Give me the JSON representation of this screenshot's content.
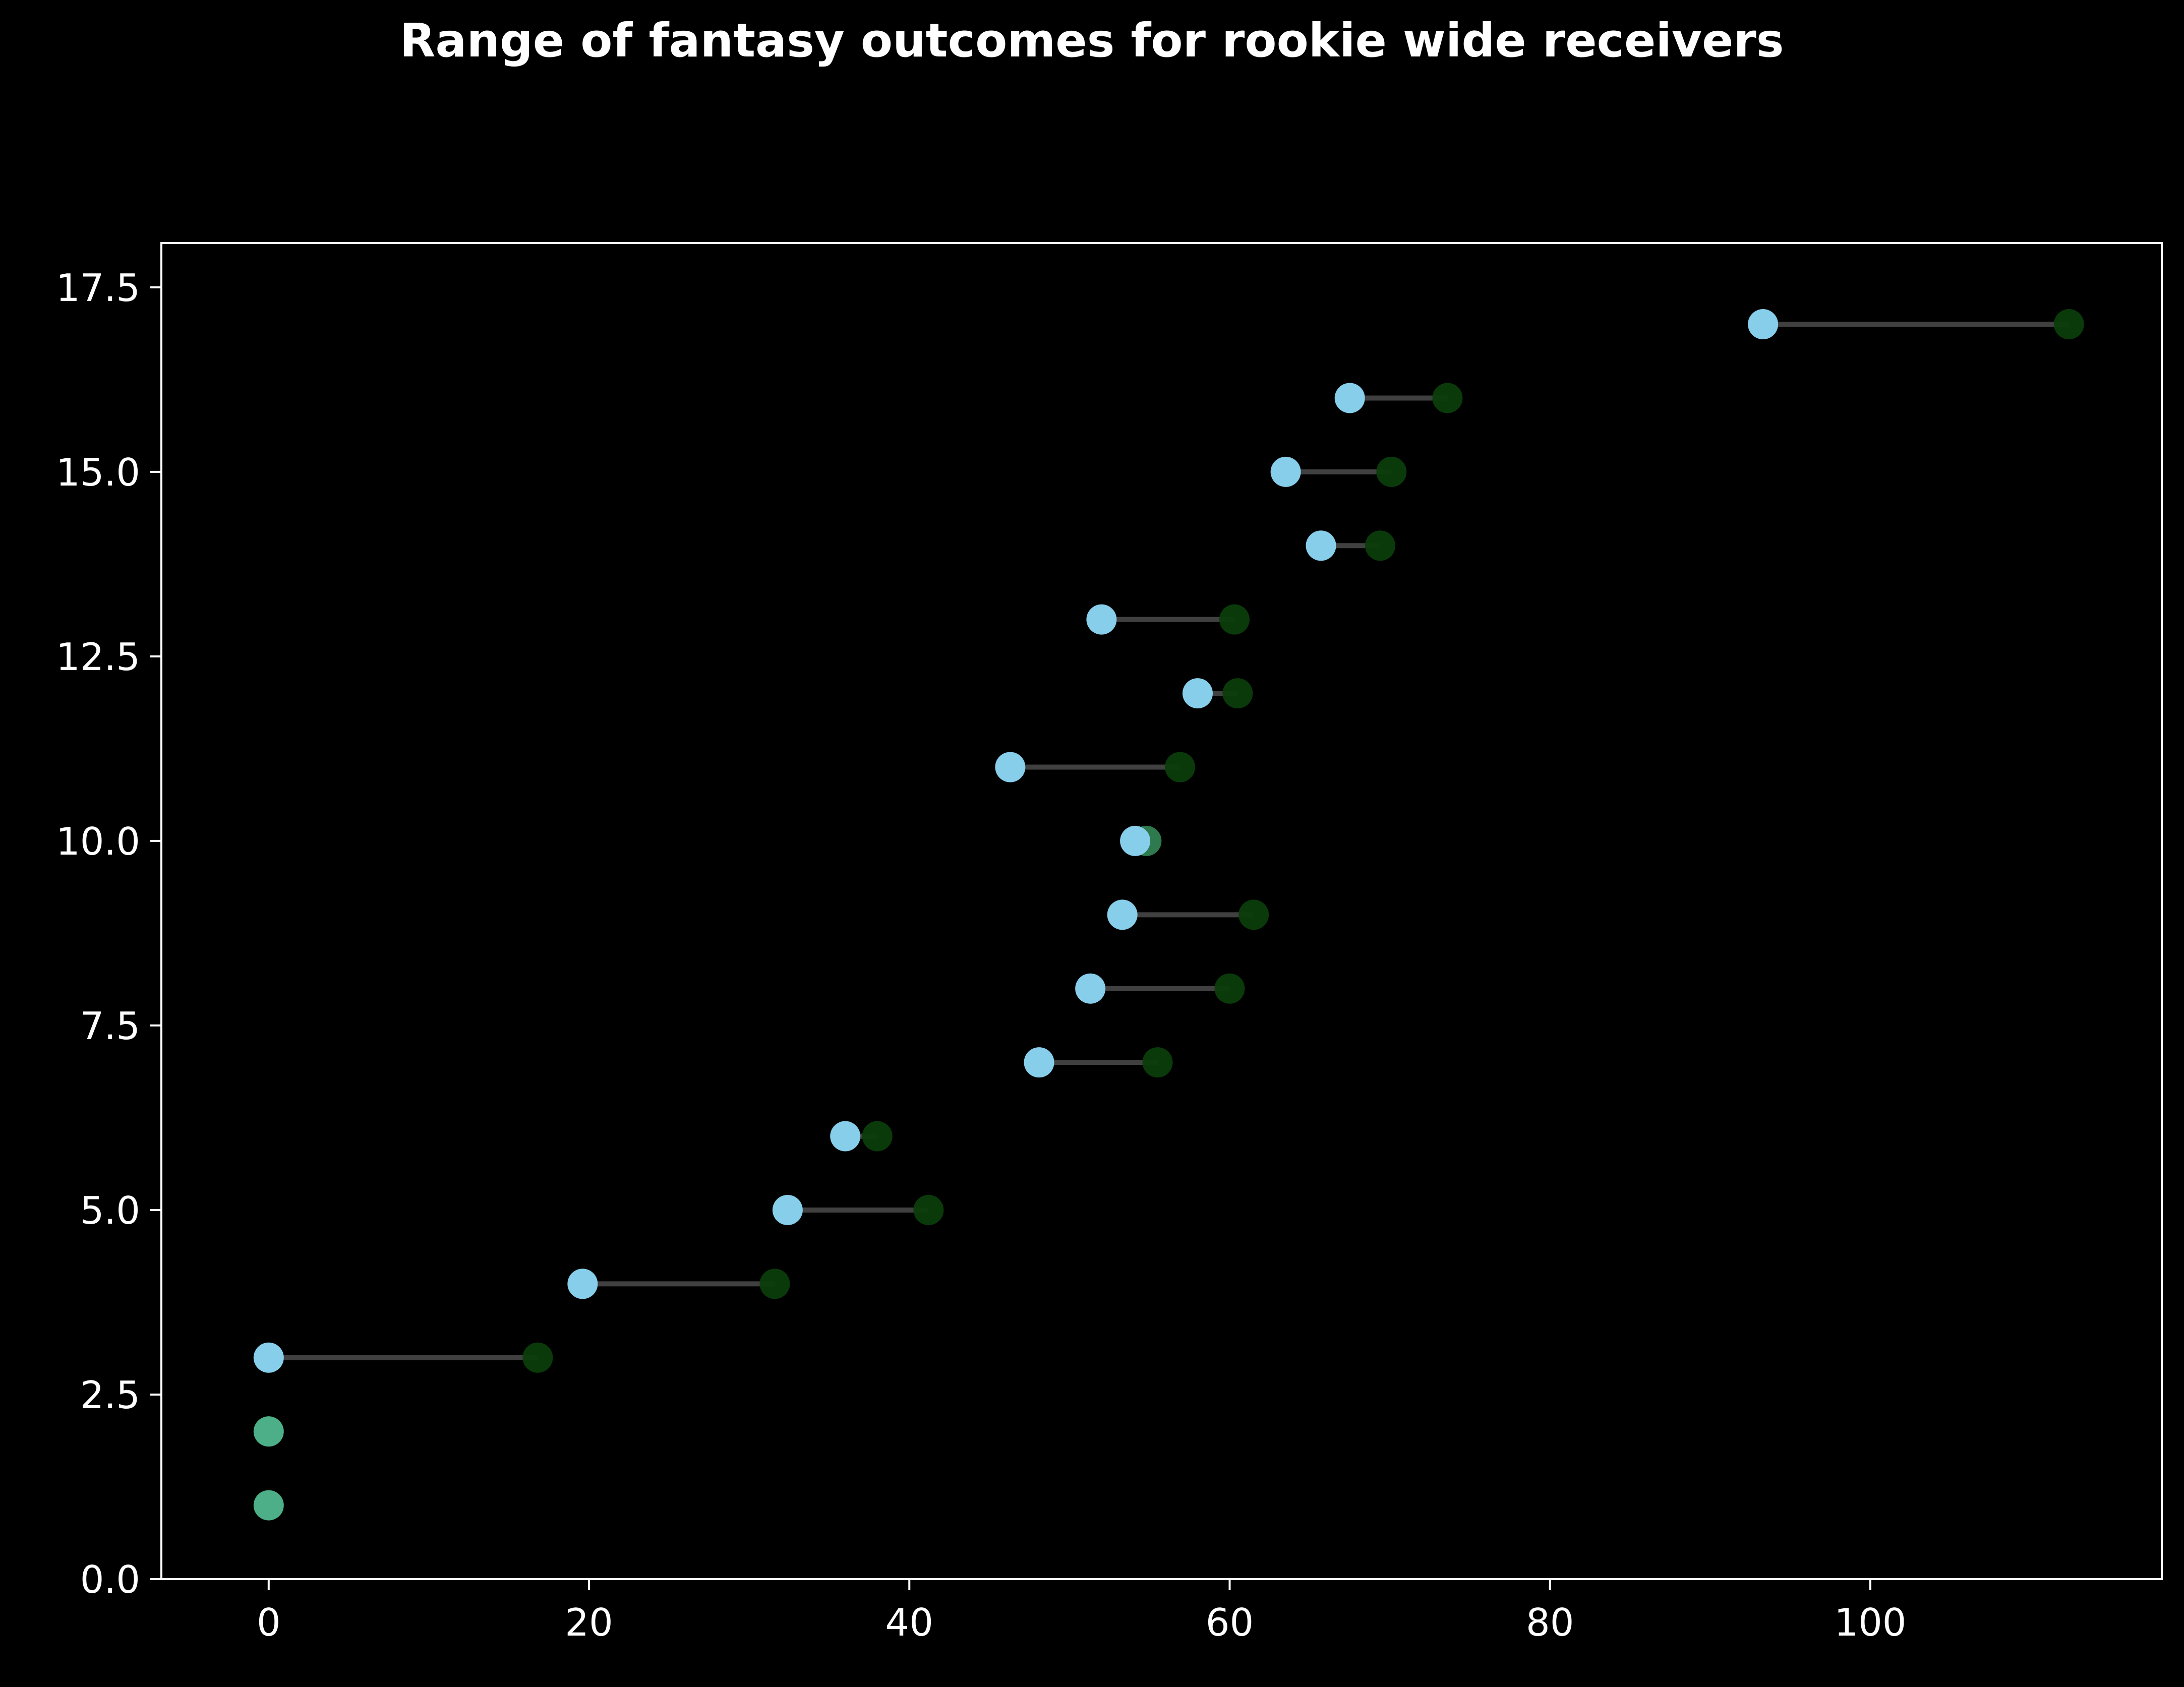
{
  "chart_data": {
    "type": "dumbbell",
    "title": "Range of fantasy outcomes for rookie wide receivers",
    "xlabel": "",
    "ylabel": "",
    "xlim": [
      -6.7,
      118.2
    ],
    "ylim": [
      0,
      18.1
    ],
    "x_ticks": [
      0,
      20,
      40,
      60,
      80,
      100
    ],
    "y_ticks": [
      0.0,
      2.5,
      5.0,
      7.5,
      10.0,
      12.5,
      15.0,
      17.5
    ],
    "grid": false,
    "legend": "none",
    "colors": {
      "background": "#000000",
      "axes": "#ffffff",
      "start_marker": "#87ceeb",
      "end_marker": "#0b3d0b",
      "connector": "#555555",
      "overlap_marker": "#4caf87"
    },
    "points": [
      {
        "y": 1,
        "start": 0.0,
        "end": 0.0
      },
      {
        "y": 2,
        "start": 0.0,
        "end": 0.0
      },
      {
        "y": 3,
        "start": 0.0,
        "end": 16.8
      },
      {
        "y": 4,
        "start": 19.6,
        "end": 31.6
      },
      {
        "y": 5,
        "start": 32.4,
        "end": 41.2
      },
      {
        "y": 6,
        "start": 36.0,
        "end": 38.0
      },
      {
        "y": 7,
        "start": 48.1,
        "end": 55.5
      },
      {
        "y": 8,
        "start": 51.3,
        "end": 60.0
      },
      {
        "y": 9,
        "start": 53.3,
        "end": 61.5
      },
      {
        "y": 10,
        "start": 54.1,
        "end": 54.8
      },
      {
        "y": 11,
        "start": 46.3,
        "end": 56.9
      },
      {
        "y": 12,
        "start": 58.0,
        "end": 60.5
      },
      {
        "y": 13,
        "start": 52.0,
        "end": 60.3
      },
      {
        "y": 14,
        "start": 65.7,
        "end": 69.4
      },
      {
        "y": 15,
        "start": 63.5,
        "end": 70.1
      },
      {
        "y": 16,
        "start": 67.5,
        "end": 73.6
      },
      {
        "y": 17,
        "start": 93.3,
        "end": 112.4
      }
    ]
  }
}
